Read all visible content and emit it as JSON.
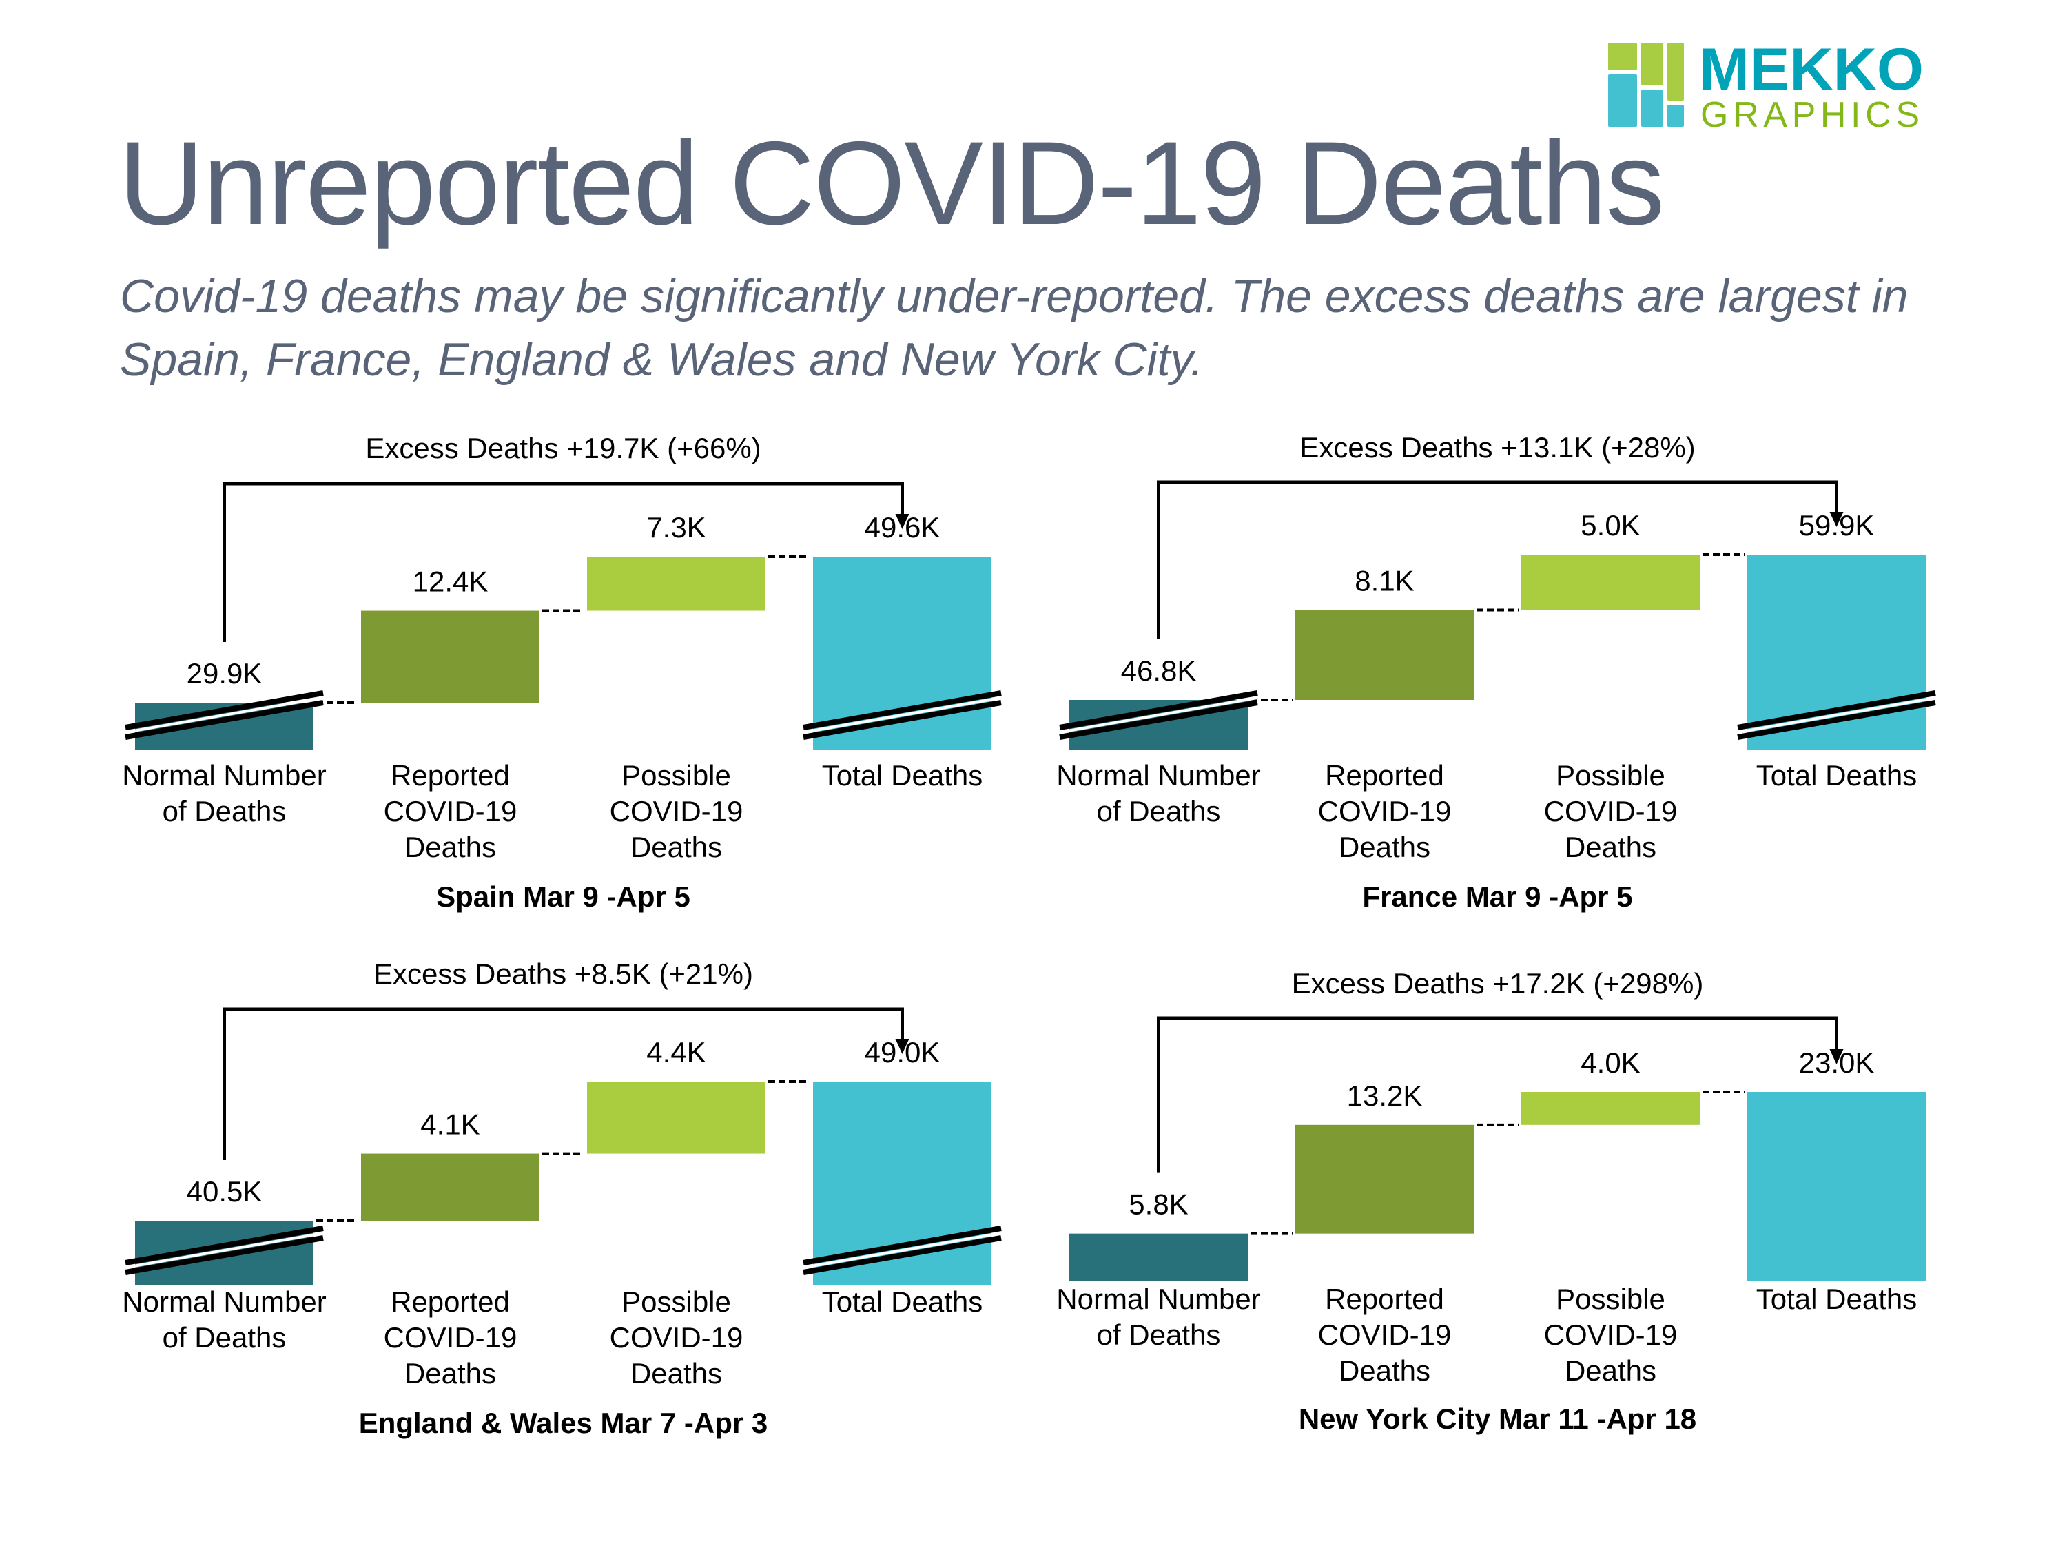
{
  "title": "Unreported COVID-19 Deaths",
  "subtitle": "Covid-19 deaths may be significantly under-reported. The excess deaths are largest in Spain, France, England & Wales and New York City.",
  "logo": {
    "line1": "MEKKO",
    "line2": "GRAPHICS",
    "colors": {
      "teal": "#00a3b8",
      "green": "#84b818",
      "light_green": "#a9cd42",
      "light_teal": "#43c1d1"
    }
  },
  "colors": {
    "normal": "#28707a",
    "reported": "#7e9a32",
    "possible": "#aacd40",
    "total": "#44c1d0"
  },
  "chart_data": [
    {
      "type": "waterfall",
      "title": "Spain Mar 9 -Apr 5",
      "annotation": "Excess Deaths +19.7K (+66%)",
      "categories": [
        "Normal Number of Deaths",
        "Reported COVID-19 Deaths",
        "Possible COVID-19 Deaths",
        "Total Deaths"
      ],
      "category_lines": [
        [
          "Normal Number",
          "of Deaths"
        ],
        [
          "Reported",
          "COVID-19",
          "Deaths"
        ],
        [
          "Possible",
          "COVID-19",
          "Deaths"
        ],
        [
          "Total Deaths"
        ]
      ],
      "values": [
        29.9,
        12.4,
        7.3,
        49.6
      ],
      "value_labels": [
        "29.9K",
        "12.4K",
        "7.3K",
        "49.6K"
      ],
      "unit": "thousands of deaths",
      "axis_break": true
    },
    {
      "type": "waterfall",
      "title": "France Mar 9 -Apr 5",
      "annotation": "Excess Deaths +13.1K (+28%)",
      "categories": [
        "Normal Number of Deaths",
        "Reported COVID-19 Deaths",
        "Possible COVID-19 Deaths",
        "Total Deaths"
      ],
      "category_lines": [
        [
          "Normal Number",
          "of Deaths"
        ],
        [
          "Reported",
          "COVID-19",
          "Deaths"
        ],
        [
          "Possible",
          "COVID-19",
          "Deaths"
        ],
        [
          "Total Deaths"
        ]
      ],
      "values": [
        46.8,
        8.1,
        5.0,
        59.9
      ],
      "value_labels": [
        "46.8K",
        "8.1K",
        "5.0K",
        "59.9K"
      ],
      "unit": "thousands of deaths",
      "axis_break": true
    },
    {
      "type": "waterfall",
      "title": "England & Wales Mar 7 -Apr 3",
      "annotation": "Excess Deaths +8.5K (+21%)",
      "categories": [
        "Normal Number of Deaths",
        "Reported COVID-19 Deaths",
        "Possible COVID-19 Deaths",
        "Total Deaths"
      ],
      "category_lines": [
        [
          "Normal Number",
          "of Deaths"
        ],
        [
          "Reported",
          "COVID-19",
          "Deaths"
        ],
        [
          "Possible",
          "COVID-19",
          "Deaths"
        ],
        [
          "Total Deaths"
        ]
      ],
      "values": [
        40.5,
        4.1,
        4.4,
        49.0
      ],
      "value_labels": [
        "40.5K",
        "4.1K",
        "4.4K",
        "49.0K"
      ],
      "unit": "thousands of deaths",
      "axis_break": true
    },
    {
      "type": "waterfall",
      "title": "New York City Mar 11 -Apr 18",
      "annotation": "Excess Deaths +17.2K (+298%)",
      "categories": [
        "Normal Number of Deaths",
        "Reported COVID-19 Deaths",
        "Possible COVID-19 Deaths",
        "Total Deaths"
      ],
      "category_lines": [
        [
          "Normal Number",
          "of Deaths"
        ],
        [
          "Reported",
          "COVID-19",
          "Deaths"
        ],
        [
          "Possible",
          "COVID-19",
          "Deaths"
        ],
        [
          "Total Deaths"
        ]
      ],
      "values": [
        5.8,
        13.2,
        4.0,
        23.0
      ],
      "value_labels": [
        "5.8K",
        "13.2K",
        "4.0K",
        "23.0K"
      ],
      "unit": "thousands of deaths",
      "axis_break": false
    }
  ]
}
